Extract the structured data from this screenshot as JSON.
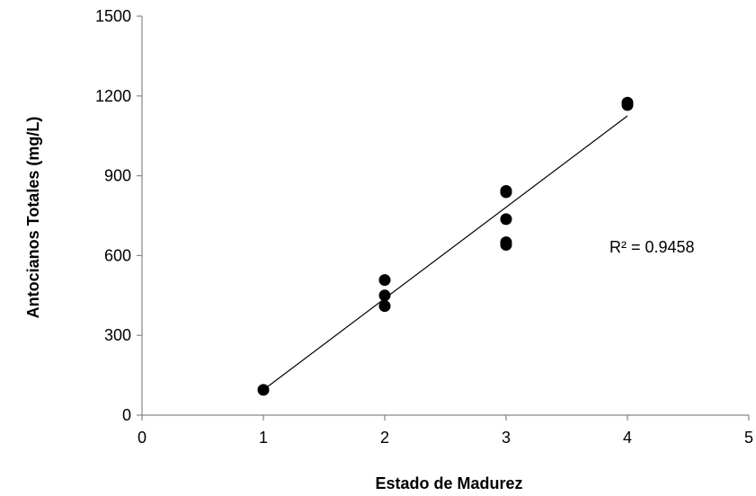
{
  "chart_data": {
    "type": "scatter",
    "xlabel": "Estado de Madurez",
    "ylabel": "Antocianos Totales (mg/L)",
    "xlim": [
      0,
      5
    ],
    "ylim": [
      0,
      1500
    ],
    "x_ticks": [
      0,
      1,
      2,
      3,
      4,
      5
    ],
    "y_ticks": [
      0,
      300,
      600,
      900,
      1200,
      1500
    ],
    "grid": false,
    "legend": "none",
    "marker_color": "#000000",
    "series": [
      {
        "points": [
          {
            "x": 1,
            "y": 95
          },
          {
            "x": 2,
            "y": 410
          },
          {
            "x": 2,
            "y": 450
          },
          {
            "x": 2,
            "y": 508
          },
          {
            "x": 3,
            "y": 640
          },
          {
            "x": 3,
            "y": 650
          },
          {
            "x": 3,
            "y": 737
          },
          {
            "x": 3,
            "y": 838
          },
          {
            "x": 3,
            "y": 843
          },
          {
            "x": 4,
            "y": 1166
          },
          {
            "x": 4,
            "y": 1175
          }
        ]
      }
    ],
    "trendline": {
      "type": "linear",
      "x_start": 1,
      "y_start": 95,
      "x_end": 4,
      "y_end": 1125,
      "r2_label": "R² = 0.9458"
    }
  }
}
